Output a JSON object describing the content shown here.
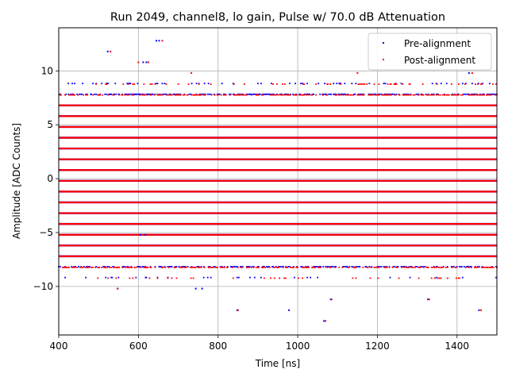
{
  "chart_data": {
    "type": "scatter",
    "title": "Run 2049, channel8, lo gain, Pulse w/ 70.0 dB Attenuation",
    "xlabel": "Time [ns]",
    "ylabel": "Amplitude [ADC Counts]",
    "xlim": [
      400,
      1500
    ],
    "ylim": [
      -14.5,
      14
    ],
    "xticks": [
      400,
      600,
      800,
      1000,
      1200,
      1400
    ],
    "yticks": [
      -10,
      -5,
      0,
      5,
      10
    ],
    "grid": true,
    "legend_position": "top-right",
    "dense_levels": [
      -7.2,
      -6.2,
      -5.2,
      -4.2,
      -3.2,
      -2.2,
      -1.2,
      -0.2,
      0.8,
      1.8,
      2.8,
      3.8,
      4.8,
      5.8,
      6.8
    ],
    "sparse_levels": [
      {
        "y": 7.8,
        "density": 0.9
      },
      {
        "y": 8.8,
        "density": 0.22
      },
      {
        "y": -8.2,
        "density": 0.75
      },
      {
        "y": -9.2,
        "density": 0.12
      }
    ],
    "series": [
      {
        "name": "Pre-alignment",
        "color": "#0000ff",
        "outliers": [
          [
            523,
            11.8
          ],
          [
            612,
            10.8
          ],
          [
            620,
            10.8
          ],
          [
            645,
            12.8
          ],
          [
            652,
            12.8
          ],
          [
            548,
            -10.2
          ],
          [
            744,
            -10.2
          ],
          [
            760,
            -10.2
          ],
          [
            1430,
            9.8
          ],
          [
            1066,
            -13.2
          ],
          [
            1083,
            -11.2
          ],
          [
            1327,
            -11.2
          ],
          [
            1455,
            -12.2
          ],
          [
            978,
            -12.2
          ],
          [
            848,
            -12.2
          ],
          [
            605,
            -5.2
          ],
          [
            617,
            -5.2
          ]
        ]
      },
      {
        "name": "Post-alignment",
        "color": "#ff0000",
        "outliers": [
          [
            530,
            11.8
          ],
          [
            600,
            10.8
          ],
          [
            625,
            10.8
          ],
          [
            660,
            12.8
          ],
          [
            733,
            9.8
          ],
          [
            1150,
            9.8
          ],
          [
            1438,
            9.8
          ],
          [
            548,
            -10.2
          ],
          [
            1070,
            -13.2
          ],
          [
            1085,
            -11.2
          ],
          [
            1330,
            -11.2
          ],
          [
            1460,
            -12.2
          ],
          [
            850,
            -12.2
          ],
          [
            612,
            -5.2
          ]
        ]
      }
    ]
  }
}
